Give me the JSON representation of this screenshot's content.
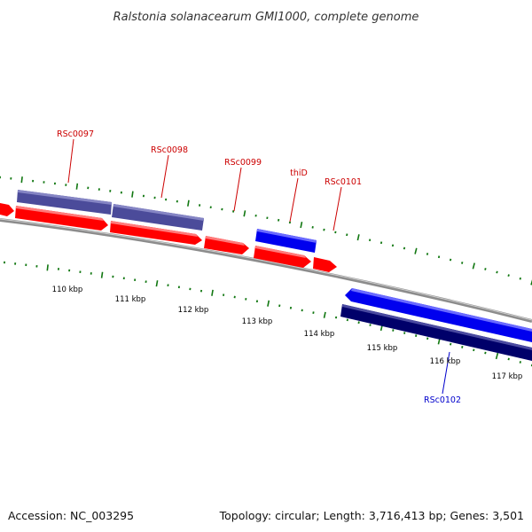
{
  "title": "Ralstonia solanacearum GMI1000, complete genome",
  "footer": {
    "accession": "Accession: NC_003295",
    "topology": "Topology: circular; Length: 3,716,413 bp; Genes: 3,501"
  },
  "colors": {
    "forward_gene": "#ff0000",
    "forward_gene_light": "#ff6b6b",
    "reverse_gene": "#0000ee",
    "reverse_gene_dark": "#00006a",
    "cds_purple": "#4b4b9a",
    "tick": "#117711",
    "backbone": "#8c8c8c",
    "label_forward": "#cc0000",
    "label_reverse": "#0000cc"
  },
  "kbp_labels": [
    "110 kbp",
    "111 kbp",
    "112 kbp",
    "113 kbp",
    "114 kbp",
    "115 kbp",
    "116 kbp",
    "117 kbp"
  ],
  "gene_labels": [
    {
      "text": "RSc0097",
      "strand": "forward"
    },
    {
      "text": "RSc0098",
      "strand": "forward"
    },
    {
      "text": "RSc0099",
      "strand": "forward"
    },
    {
      "text": "thiD",
      "strand": "forward"
    },
    {
      "text": "RSc0101",
      "strand": "forward"
    },
    {
      "text": "RSc0102",
      "strand": "reverse"
    }
  ]
}
